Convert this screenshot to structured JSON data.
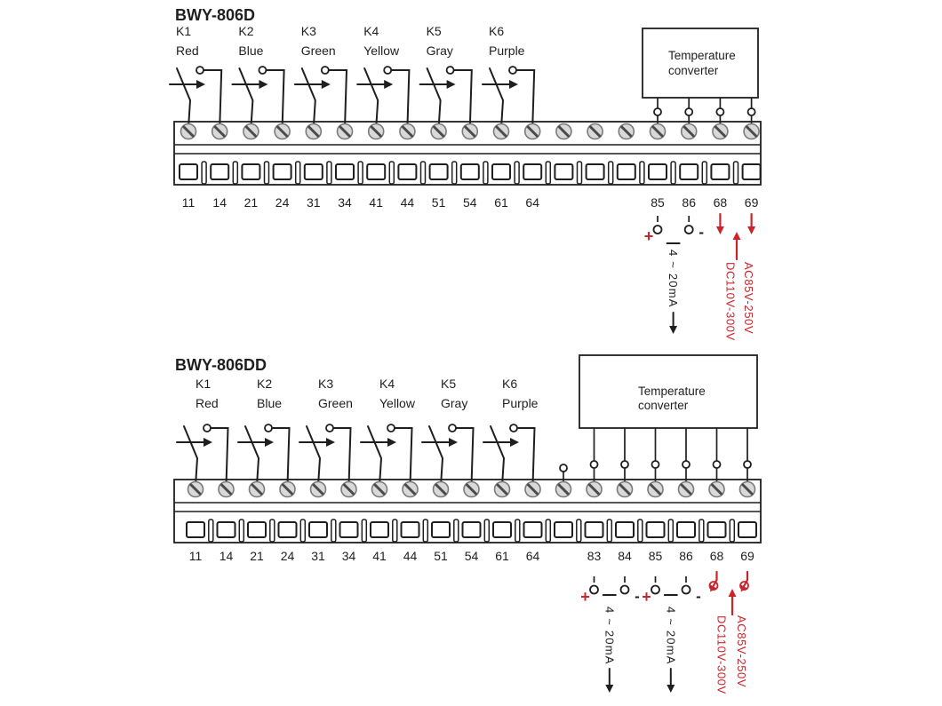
{
  "colors": {
    "ink": "#1f1f1f",
    "red": "#c9252b",
    "screw_fill": "#d9d9d9",
    "screw_stroke": "#7a7a7a",
    "screw_slot": "#4a4a4a"
  },
  "diagrams": [
    {
      "title": "BWY-806D",
      "relays": [
        {
          "name": "K1",
          "color": "Red"
        },
        {
          "name": "K2",
          "color": "Blue"
        },
        {
          "name": "K3",
          "color": "Green"
        },
        {
          "name": "K4",
          "color": "Yellow"
        },
        {
          "name": "K5",
          "color": "Gray"
        },
        {
          "name": "K6",
          "color": "Purple"
        }
      ],
      "terminal_labels": [
        "11",
        "14",
        "21",
        "24",
        "31",
        "34",
        "41",
        "44",
        "51",
        "54",
        "61",
        "64",
        "",
        "",
        "",
        "85",
        "86",
        "68",
        "69"
      ],
      "converter": {
        "line1": "Temperature",
        "line2": "converter"
      },
      "current_label": "4 ~ 20mA",
      "plus_sign": "+",
      "minus_sign": "-",
      "power_rating_ac": "AC85V-250V",
      "power_rating_dc": "DC110V-300V"
    },
    {
      "title": "BWY-806DD",
      "relays": [
        {
          "name": "K1",
          "color": "Red"
        },
        {
          "name": "K2",
          "color": "Blue"
        },
        {
          "name": "K3",
          "color": "Green"
        },
        {
          "name": "K4",
          "color": "Yellow"
        },
        {
          "name": "K5",
          "color": "Gray"
        },
        {
          "name": "K6",
          "color": "Purple"
        }
      ],
      "terminal_labels": [
        "11",
        "14",
        "21",
        "24",
        "31",
        "34",
        "41",
        "44",
        "51",
        "54",
        "61",
        "64",
        "",
        "83",
        "84",
        "85",
        "86",
        "68",
        "69"
      ],
      "converter": {
        "line1": "Temperature",
        "line2": "converter"
      },
      "current_label": "4 ~ 20mA",
      "plus_sign": "+",
      "minus_sign": "-",
      "power_rating_ac": "AC85V-250V",
      "power_rating_dc": "DC110V-300V"
    }
  ]
}
